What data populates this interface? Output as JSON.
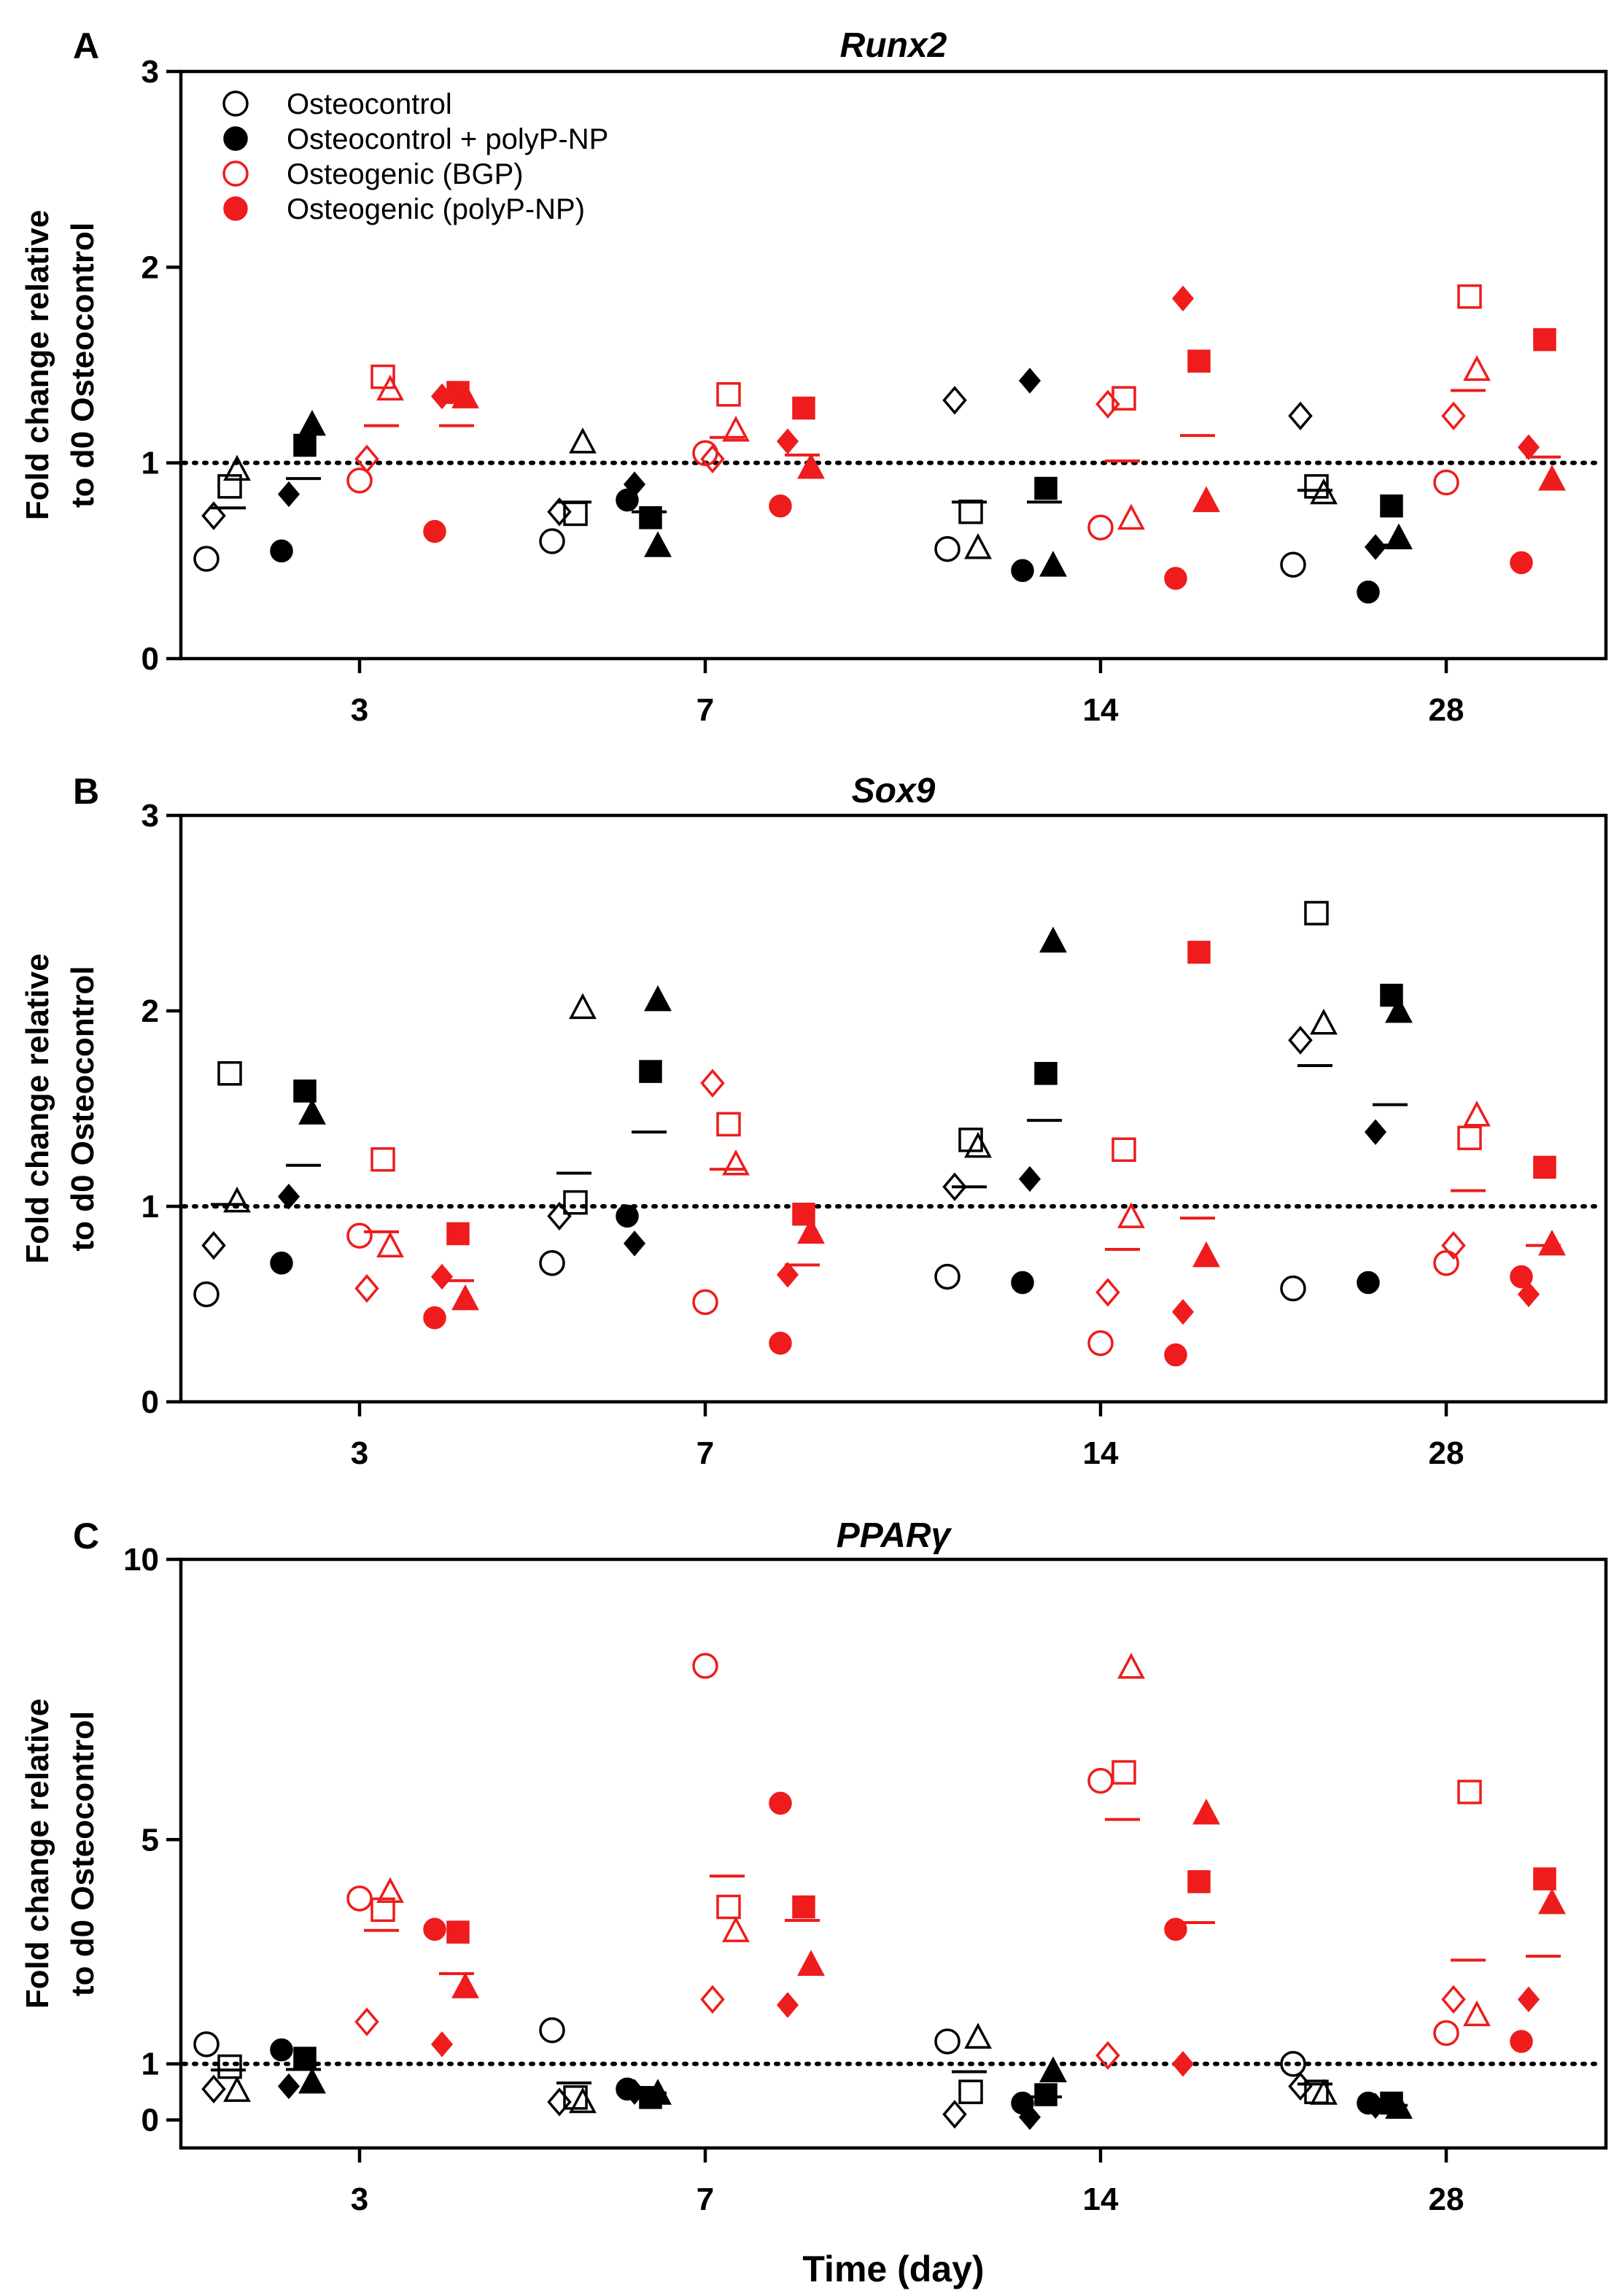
{
  "colors": {
    "control": "#000000",
    "osteogenic": "#ee1c1c"
  },
  "xlabel": "Time (day)",
  "legend": [
    {
      "label": "Osteocontrol",
      "filled": false,
      "color": "#000000"
    },
    {
      "label": "Osteocontrol + polyP-NP",
      "filled": true,
      "color": "#000000"
    },
    {
      "label": "Osteogenic (BGP)",
      "filled": false,
      "color": "#ee1c1c"
    },
    {
      "label": "Osteogenic (polyP-NP)",
      "filled": true,
      "color": "#ee1c1c"
    }
  ],
  "chart_data": [
    {
      "type": "scatter",
      "panel": "A",
      "title": "Runx2",
      "ylabel": [
        "Fold change relative",
        "to d0 Osteocontrol"
      ],
      "xlabel": "",
      "categories": [
        "3",
        "7",
        "14",
        "28"
      ],
      "ylim": [
        0,
        3
      ],
      "yticks": [
        0,
        1,
        2,
        3
      ],
      "reference_line": 1,
      "series": [
        {
          "name": "Osteocontrol",
          "points": [
            {
              "day": "3",
              "circle": 0.51,
              "square": 0.88,
              "triangle": 0.96,
              "diamond": 0.73,
              "mean": 0.77
            },
            {
              "day": "7",
              "circle": 0.6,
              "square": 0.74,
              "triangle": 1.1,
              "diamond": 0.75,
              "mean": 0.8
            },
            {
              "day": "14",
              "circle": 0.56,
              "square": 0.75,
              "triangle": 0.56,
              "diamond": 1.32,
              "mean": 0.8
            },
            {
              "day": "28",
              "circle": 0.48,
              "square": 0.88,
              "triangle": 0.84,
              "diamond": 1.24,
              "mean": 0.86
            }
          ]
        },
        {
          "name": "Osteocontrol + polyP-NP",
          "points": [
            {
              "day": "3",
              "circle": 0.55,
              "square": 1.09,
              "triangle": 1.19,
              "diamond": 0.84,
              "mean": 0.92
            },
            {
              "day": "7",
              "circle": 0.81,
              "square": 0.72,
              "triangle": 0.57,
              "diamond": 0.89,
              "mean": 0.75
            },
            {
              "day": "14",
              "circle": 0.45,
              "square": 0.87,
              "triangle": 0.47,
              "diamond": 1.42,
              "mean": 0.8
            },
            {
              "day": "28",
              "circle": 0.34,
              "square": 0.78,
              "triangle": 0.61,
              "diamond": 0.57,
              "mean": 0.58
            }
          ]
        },
        {
          "name": "Osteogenic (BGP)",
          "points": [
            {
              "day": "3",
              "circle": 0.91,
              "square": 1.44,
              "triangle": 1.37,
              "diamond": 1.02,
              "mean": 1.19
            },
            {
              "day": "7",
              "circle": 1.05,
              "square": 1.35,
              "triangle": 1.16,
              "diamond": 1.02,
              "mean": 1.13
            },
            {
              "day": "14",
              "circle": 0.67,
              "square": 1.33,
              "triangle": 0.71,
              "diamond": 1.3,
              "mean": 1.01
            },
            {
              "day": "28",
              "circle": 0.9,
              "square": 1.85,
              "triangle": 1.47,
              "diamond": 1.24,
              "mean": 1.37
            }
          ]
        },
        {
          "name": "Osteogenic (polyP-NP)",
          "points": [
            {
              "day": "3",
              "circle": 0.65,
              "square": 1.36,
              "triangle": 1.33,
              "diamond": 1.34,
              "mean": 1.19
            },
            {
              "day": "7",
              "circle": 0.78,
              "square": 1.28,
              "triangle": 0.97,
              "diamond": 1.11,
              "mean": 1.04
            },
            {
              "day": "14",
              "circle": 0.41,
              "square": 1.52,
              "triangle": 0.8,
              "diamond": 1.84,
              "mean": 1.14
            },
            {
              "day": "28",
              "circle": 0.49,
              "square": 1.63,
              "triangle": 0.91,
              "diamond": 1.08,
              "mean": 1.03
            }
          ]
        }
      ]
    },
    {
      "type": "scatter",
      "panel": "B",
      "title": "Sox9",
      "ylabel": [
        "Fold change relative",
        "to d0 Osteocontrol"
      ],
      "xlabel": "",
      "categories": [
        "3",
        "7",
        "14",
        "28"
      ],
      "ylim": [
        0,
        3
      ],
      "yticks": [
        0,
        1,
        2,
        3
      ],
      "reference_line": 1,
      "series": [
        {
          "name": "Osteocontrol",
          "points": [
            {
              "day": "3",
              "circle": 0.55,
              "square": 1.68,
              "triangle": 1.02,
              "diamond": 0.8,
              "mean": 1.01
            },
            {
              "day": "7",
              "circle": 0.71,
              "square": 1.02,
              "triangle": 2.01,
              "diamond": 0.95,
              "mean": 1.17
            },
            {
              "day": "14",
              "circle": 0.64,
              "square": 1.34,
              "triangle": 1.3,
              "diamond": 1.1,
              "mean": 1.1
            },
            {
              "day": "28",
              "circle": 0.58,
              "square": 2.5,
              "triangle": 1.93,
              "diamond": 1.85,
              "mean": 1.72
            }
          ]
        },
        {
          "name": "Osteocontrol + polyP-NP",
          "points": [
            {
              "day": "3",
              "circle": 0.71,
              "square": 1.59,
              "triangle": 1.47,
              "diamond": 1.05,
              "mean": 1.21
            },
            {
              "day": "7",
              "circle": 0.95,
              "square": 1.69,
              "triangle": 2.05,
              "diamond": 0.81,
              "mean": 1.38
            },
            {
              "day": "14",
              "circle": 0.61,
              "square": 1.68,
              "triangle": 2.35,
              "diamond": 1.14,
              "mean": 1.44
            },
            {
              "day": "28",
              "circle": 0.61,
              "square": 2.08,
              "triangle": 1.99,
              "diamond": 1.38,
              "mean": 1.52
            }
          ]
        },
        {
          "name": "Osteogenic (BGP)",
          "points": [
            {
              "day": "3",
              "circle": 0.85,
              "square": 1.24,
              "triangle": 0.79,
              "diamond": 0.58,
              "mean": 0.87
            },
            {
              "day": "7",
              "circle": 0.51,
              "square": 1.42,
              "triangle": 1.21,
              "diamond": 1.63,
              "mean": 1.19
            },
            {
              "day": "14",
              "circle": 0.3,
              "square": 1.29,
              "triangle": 0.94,
              "diamond": 0.56,
              "mean": 0.78
            },
            {
              "day": "28",
              "circle": 0.71,
              "square": 1.35,
              "triangle": 1.46,
              "diamond": 0.8,
              "mean": 1.08
            }
          ]
        },
        {
          "name": "Osteogenic (polyP-NP)",
          "points": [
            {
              "day": "3",
              "circle": 0.43,
              "square": 0.86,
              "triangle": 0.52,
              "diamond": 0.64,
              "mean": 0.62
            },
            {
              "day": "7",
              "circle": 0.3,
              "square": 0.96,
              "triangle": 0.86,
              "diamond": 0.65,
              "mean": 0.7
            },
            {
              "day": "14",
              "circle": 0.24,
              "square": 2.3,
              "triangle": 0.74,
              "diamond": 0.46,
              "mean": 0.94
            },
            {
              "day": "28",
              "circle": 0.64,
              "square": 1.2,
              "triangle": 0.8,
              "diamond": 0.55,
              "mean": 0.8
            }
          ]
        }
      ]
    },
    {
      "type": "scatter",
      "panel": "C",
      "title": "PPARγ",
      "ylabel": [
        "Fold change relative",
        "to d0 Osteocontrol"
      ],
      "xlabel": "Time (day)",
      "categories": [
        "3",
        "7",
        "14",
        "28"
      ],
      "ylim": [
        -0.5,
        10
      ],
      "yticks": [
        0,
        1,
        5,
        10
      ],
      "reference_line": 1,
      "series": [
        {
          "name": "Osteocontrol",
          "points": [
            {
              "day": "3",
              "circle": 1.35,
              "square": 0.95,
              "triangle": 0.5,
              "diamond": 0.55,
              "mean": 0.89
            },
            {
              "day": "7",
              "circle": 1.6,
              "square": 0.4,
              "triangle": 0.3,
              "diamond": 0.32,
              "mean": 0.66
            },
            {
              "day": "14",
              "circle": 1.4,
              "square": 0.5,
              "triangle": 1.45,
              "diamond": 0.1,
              "mean": 0.86
            },
            {
              "day": "28",
              "circle": 1.0,
              "square": 0.5,
              "triangle": 0.45,
              "diamond": 0.6,
              "mean": 0.64
            }
          ]
        },
        {
          "name": "Osteocontrol + polyP-NP",
          "points": [
            {
              "day": "3",
              "circle": 1.25,
              "square": 1.1,
              "triangle": 0.65,
              "diamond": 0.6,
              "mean": 0.9
            },
            {
              "day": "7",
              "circle": 0.55,
              "square": 0.4,
              "triangle": 0.45,
              "diamond": 0.5,
              "mean": 0.48
            },
            {
              "day": "14",
              "circle": 0.3,
              "square": 0.45,
              "triangle": 0.85,
              "diamond": 0.05,
              "mean": 0.41
            },
            {
              "day": "28",
              "circle": 0.3,
              "square": 0.3,
              "triangle": 0.2,
              "diamond": 0.25,
              "mean": 0.26
            }
          ]
        },
        {
          "name": "Osteogenic (BGP)",
          "points": [
            {
              "day": "3",
              "circle": 3.95,
              "square": 3.75,
              "triangle": 4.05,
              "diamond": 1.75,
              "mean": 3.38
            },
            {
              "day": "7",
              "circle": 8.1,
              "square": 3.8,
              "triangle": 3.35,
              "diamond": 2.15,
              "mean": 4.35
            },
            {
              "day": "14",
              "circle": 6.05,
              "square": 6.2,
              "triangle": 8.05,
              "diamond": 1.15,
              "mean": 5.36
            },
            {
              "day": "28",
              "circle": 1.55,
              "square": 5.85,
              "triangle": 1.85,
              "diamond": 2.15,
              "mean": 2.85
            }
          ]
        },
        {
          "name": "Osteogenic (polyP-NP)",
          "points": [
            {
              "day": "3",
              "circle": 3.4,
              "square": 3.35,
              "triangle": 2.35,
              "diamond": 1.35,
              "mean": 2.61
            },
            {
              "day": "7",
              "circle": 5.65,
              "square": 3.8,
              "triangle": 2.75,
              "diamond": 2.05,
              "mean": 3.56
            },
            {
              "day": "14",
              "circle": 3.4,
              "square": 4.25,
              "triangle": 5.45,
              "diamond": 1.0,
              "mean": 3.52
            },
            {
              "day": "28",
              "circle": 1.4,
              "square": 4.3,
              "triangle": 3.85,
              "diamond": 2.15,
              "mean": 2.92
            }
          ]
        }
      ]
    }
  ]
}
